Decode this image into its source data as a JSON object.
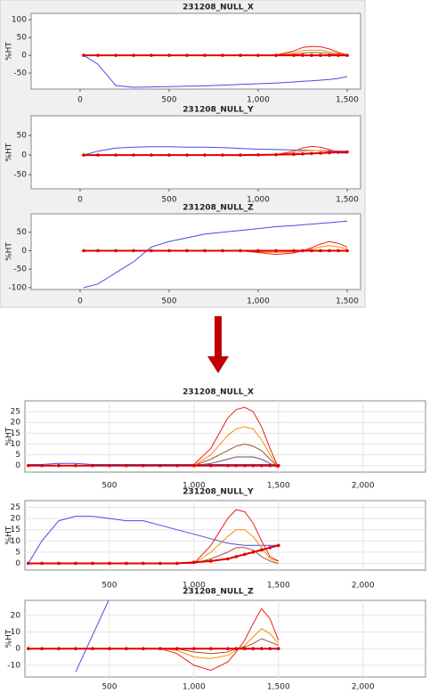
{
  "chart_data": [
    {
      "type": "line",
      "title": "231208_NULL_X",
      "y_label": "%HT",
      "grid": false,
      "x": [
        20,
        100,
        200,
        300,
        400,
        500,
        600,
        700,
        800,
        900,
        1000,
        1100,
        1200,
        1250,
        1300,
        1350,
        1400,
        1450,
        1500
      ],
      "xlim": [
        -275,
        1575
      ],
      "xticks": [
        0,
        500,
        {
          "value": 1000,
          "label": "1,000"
        },
        {
          "value": 1500,
          "label": "1,500"
        }
      ],
      "ylim": [
        -95,
        118
      ],
      "yticks": [
        -50,
        0,
        50,
        100
      ],
      "series": [
        {
          "color": "#4a4ae0",
          "values": [
            0,
            -25,
            -85,
            -90,
            -89,
            -88,
            -87,
            -86,
            -84,
            -82,
            -80,
            -78,
            -75,
            -73,
            -72,
            -70,
            -68,
            -65,
            -60
          ]
        },
        {
          "color": "#a0522d",
          "values": [
            0,
            0,
            0,
            0,
            0,
            0,
            0,
            0,
            0,
            0,
            0,
            0,
            3,
            6,
            8,
            7,
            5,
            2,
            0
          ]
        },
        {
          "color": "#ff8c00",
          "values": [
            0,
            0,
            0,
            0,
            0,
            0,
            0,
            0,
            0,
            0,
            0,
            0.5,
            7,
            13,
            15,
            14,
            10,
            5,
            0
          ]
        },
        {
          "color": "#e8231b",
          "values": [
            0,
            0,
            0,
            0,
            0,
            0,
            0,
            0,
            0,
            0,
            0,
            1,
            12,
            22,
            25,
            24,
            18,
            8,
            1
          ]
        },
        {
          "color": "#e00000",
          "markers": true,
          "values": [
            0,
            0,
            0,
            0,
            0,
            0,
            0,
            0,
            0,
            0,
            0,
            0,
            0,
            0,
            0,
            0,
            0,
            0,
            0
          ]
        }
      ]
    },
    {
      "type": "line",
      "title": "231208_NULL_Y",
      "y_label": "%HT",
      "grid": false,
      "x": [
        20,
        100,
        200,
        300,
        400,
        500,
        600,
        700,
        800,
        900,
        1000,
        1100,
        1200,
        1250,
        1300,
        1350,
        1400,
        1450,
        1500
      ],
      "xlim": [
        -275,
        1575
      ],
      "xticks": [
        0,
        500,
        {
          "value": 1000,
          "label": "1,000"
        },
        {
          "value": 1500,
          "label": "1,500"
        }
      ],
      "ylim": [
        -86,
        100
      ],
      "yticks": [
        -50,
        0,
        50
      ],
      "series": [
        {
          "color": "#4a4ae0",
          "values": [
            0,
            10,
            18,
            20,
            21,
            21,
            20,
            20,
            19,
            17,
            15,
            14,
            13,
            12,
            12,
            11,
            11,
            10,
            10
          ]
        },
        {
          "color": "#ff8c00",
          "values": [
            0,
            0,
            0,
            0,
            0,
            0,
            0,
            0,
            0,
            0,
            0,
            1,
            6,
            10,
            12,
            11,
            9,
            6,
            5
          ]
        },
        {
          "color": "#e8231b",
          "values": [
            0,
            0,
            0,
            0,
            0,
            0,
            0,
            0,
            0,
            0,
            0,
            1,
            10,
            18,
            22,
            20,
            14,
            6,
            5
          ]
        },
        {
          "color": "#e00000",
          "markers": true,
          "values": [
            0,
            0,
            0,
            0,
            0,
            0,
            0,
            0,
            0,
            0,
            0.5,
            1,
            2,
            3,
            4,
            5,
            6,
            7,
            8
          ]
        }
      ]
    },
    {
      "type": "line",
      "title": "231208_NULL_Z",
      "y_label": "%HT",
      "grid": false,
      "x": [
        20,
        100,
        200,
        300,
        400,
        500,
        600,
        700,
        800,
        900,
        1000,
        1100,
        1200,
        1250,
        1300,
        1350,
        1400,
        1450,
        1500
      ],
      "xlim": [
        -275,
        1575
      ],
      "xticks": [
        0,
        500,
        {
          "value": 1000,
          "label": "1,000"
        },
        {
          "value": 1500,
          "label": "1,500"
        }
      ],
      "ylim": [
        -105,
        100
      ],
      "yticks": [
        -100,
        -50,
        0,
        50
      ],
      "series": [
        {
          "color": "#4a4ae0",
          "values": [
            -100,
            -90,
            -60,
            -30,
            10,
            25,
            35,
            45,
            50,
            55,
            60,
            65,
            68,
            70,
            72,
            74,
            76,
            78,
            80
          ]
        },
        {
          "color": "#ff8c00",
          "values": [
            0,
            0,
            0,
            0,
            0,
            0,
            0,
            0,
            0,
            0,
            -3,
            -5,
            -3,
            0,
            4,
            10,
            14,
            10,
            5
          ]
        },
        {
          "color": "#e8231b",
          "values": [
            0,
            0,
            0,
            0,
            0,
            0,
            0,
            0,
            0,
            0,
            -5,
            -10,
            -6,
            0,
            8,
            18,
            25,
            20,
            10
          ]
        },
        {
          "color": "#e00000",
          "markers": true,
          "values": [
            0,
            0,
            0,
            0,
            0,
            0,
            0,
            0,
            0,
            0,
            0,
            0,
            0,
            0,
            0,
            0,
            0,
            0,
            0
          ]
        }
      ]
    },
    {
      "type": "line",
      "title": "231208_NULL_X",
      "y_label": "%HT",
      "grid": true,
      "x": [
        20,
        100,
        200,
        300,
        400,
        500,
        600,
        700,
        800,
        900,
        1000,
        1100,
        1200,
        1250,
        1300,
        1350,
        1400,
        1450,
        1500
      ],
      "xlim": [
        0,
        2370
      ],
      "xticks": [
        500,
        {
          "value": 1000,
          "label": "1,000"
        },
        {
          "value": 1500,
          "label": "1,500"
        },
        {
          "value": 2000,
          "label": "2,000"
        }
      ],
      "ylim": [
        -3,
        30
      ],
      "yticks": [
        0,
        5,
        10,
        15,
        20,
        25
      ],
      "series": [
        {
          "color": "#4a4ae0",
          "values": [
            0.5,
            0.5,
            1,
            1,
            0.5,
            0.5,
            0.5,
            0.5,
            0.5,
            0.5,
            0.5,
            0.5,
            0.5,
            0.5,
            0.5,
            0.5,
            0.5,
            0.5,
            0.5
          ]
        },
        {
          "color": "#7a4a6a",
          "values": [
            0,
            0,
            0,
            0,
            0,
            0,
            0,
            0,
            0,
            0,
            0,
            1,
            3,
            4,
            4,
            4,
            3,
            1,
            -1
          ]
        },
        {
          "color": "#a0522d",
          "values": [
            0,
            0,
            0,
            0,
            0,
            0,
            0,
            0,
            0,
            0,
            0,
            3,
            7,
            9,
            10,
            9,
            7,
            3,
            -1
          ]
        },
        {
          "color": "#ff8c00",
          "values": [
            0,
            0,
            0,
            0,
            0,
            0,
            0,
            0,
            0,
            0,
            0,
            5,
            14,
            17,
            18,
            17,
            12,
            5,
            -1
          ]
        },
        {
          "color": "#e8231b",
          "values": [
            0,
            0,
            0,
            0,
            0,
            0,
            0,
            0,
            0,
            0,
            0.5,
            8,
            22,
            26,
            27,
            25,
            18,
            8,
            -1
          ]
        },
        {
          "color": "#e00000",
          "markers": true,
          "values": [
            0,
            0,
            0,
            0,
            0,
            0,
            0,
            0,
            0,
            0,
            0,
            0,
            0,
            0,
            0,
            0,
            0,
            0,
            0
          ]
        }
      ]
    },
    {
      "type": "line",
      "title": "231208_NULL_Y",
      "y_label": "%HT",
      "grid": true,
      "x": [
        20,
        100,
        200,
        300,
        400,
        500,
        600,
        700,
        800,
        900,
        1000,
        1100,
        1200,
        1250,
        1300,
        1350,
        1400,
        1450,
        1500
      ],
      "xlim": [
        0,
        2370
      ],
      "xticks": [
        500,
        {
          "value": 1000,
          "label": "1,000"
        },
        {
          "value": 1500,
          "label": "1,500"
        },
        {
          "value": 2000,
          "label": "2,000"
        }
      ],
      "ylim": [
        -3,
        28
      ],
      "yticks": [
        0,
        5,
        10,
        15,
        20,
        25
      ],
      "series": [
        {
          "color": "#4a4ae0",
          "values": [
            0,
            10,
            19,
            21,
            21,
            20,
            19,
            19,
            17,
            15,
            13,
            11,
            9,
            8.5,
            8,
            8,
            8,
            8,
            8
          ]
        },
        {
          "color": "#a0522d",
          "values": [
            0,
            0,
            0,
            0,
            0,
            0,
            0,
            0,
            0,
            0,
            0,
            2,
            5,
            7,
            7,
            6,
            3,
            1,
            0
          ]
        },
        {
          "color": "#ff8c00",
          "values": [
            0,
            0,
            0,
            0,
            0,
            0,
            0,
            0,
            0,
            0,
            0,
            5,
            12,
            15,
            15,
            12,
            7,
            2,
            1
          ]
        },
        {
          "color": "#e8231b",
          "values": [
            0,
            0,
            0,
            0,
            0,
            0,
            0,
            0,
            0,
            0,
            0,
            8,
            20,
            24,
            23,
            18,
            10,
            3,
            1
          ]
        },
        {
          "color": "#e00000",
          "markers": true,
          "values": [
            0,
            0,
            0,
            0,
            0,
            0,
            0,
            0,
            0,
            0,
            0.5,
            1,
            2,
            3,
            4,
            5,
            6,
            7,
            8
          ]
        }
      ]
    },
    {
      "type": "line",
      "title": "231208_NULL_Z",
      "y_label": "%HT",
      "grid": true,
      "x": [
        20,
        100,
        200,
        300,
        400,
        500,
        600,
        700,
        800,
        900,
        1000,
        1100,
        1200,
        1250,
        1300,
        1350,
        1400,
        1450,
        1500
      ],
      "xlim": [
        0,
        2370
      ],
      "xticks": [
        500,
        {
          "value": 1000,
          "label": "1,000"
        },
        {
          "value": 1500,
          "label": "1,500"
        },
        {
          "value": 2000,
          "label": "2,000"
        }
      ],
      "ylim": [
        -17,
        29
      ],
      "yticks": [
        -10,
        0,
        10,
        20
      ],
      "series": [
        {
          "color": "#4a4ae0",
          "values": [
            null,
            null,
            null,
            -14,
            8,
            30,
            null,
            null,
            null,
            null,
            null,
            null,
            null,
            null,
            null,
            null,
            null,
            null,
            null
          ]
        },
        {
          "color": "#a0522d",
          "values": [
            0,
            0,
            0,
            0,
            0,
            0,
            0,
            0,
            0,
            0,
            -2,
            -3,
            -2,
            0,
            1,
            3,
            6,
            4,
            2
          ]
        },
        {
          "color": "#ff8c00",
          "values": [
            0,
            0,
            0,
            0,
            0,
            0,
            0,
            0,
            0,
            -1,
            -5,
            -6,
            -4,
            -1,
            2,
            7,
            12,
            9,
            3
          ]
        },
        {
          "color": "#e8231b",
          "values": [
            0,
            0,
            0,
            0,
            0,
            0,
            0,
            0,
            0,
            -3,
            -10,
            -13,
            -8,
            -2,
            5,
            15,
            24,
            18,
            5
          ]
        },
        {
          "color": "#e00000",
          "markers": true,
          "values": [
            0,
            0,
            0,
            0,
            0,
            0,
            0,
            0,
            0,
            0,
            0,
            0,
            0,
            0,
            0,
            0,
            0,
            0,
            0
          ]
        }
      ]
    }
  ]
}
